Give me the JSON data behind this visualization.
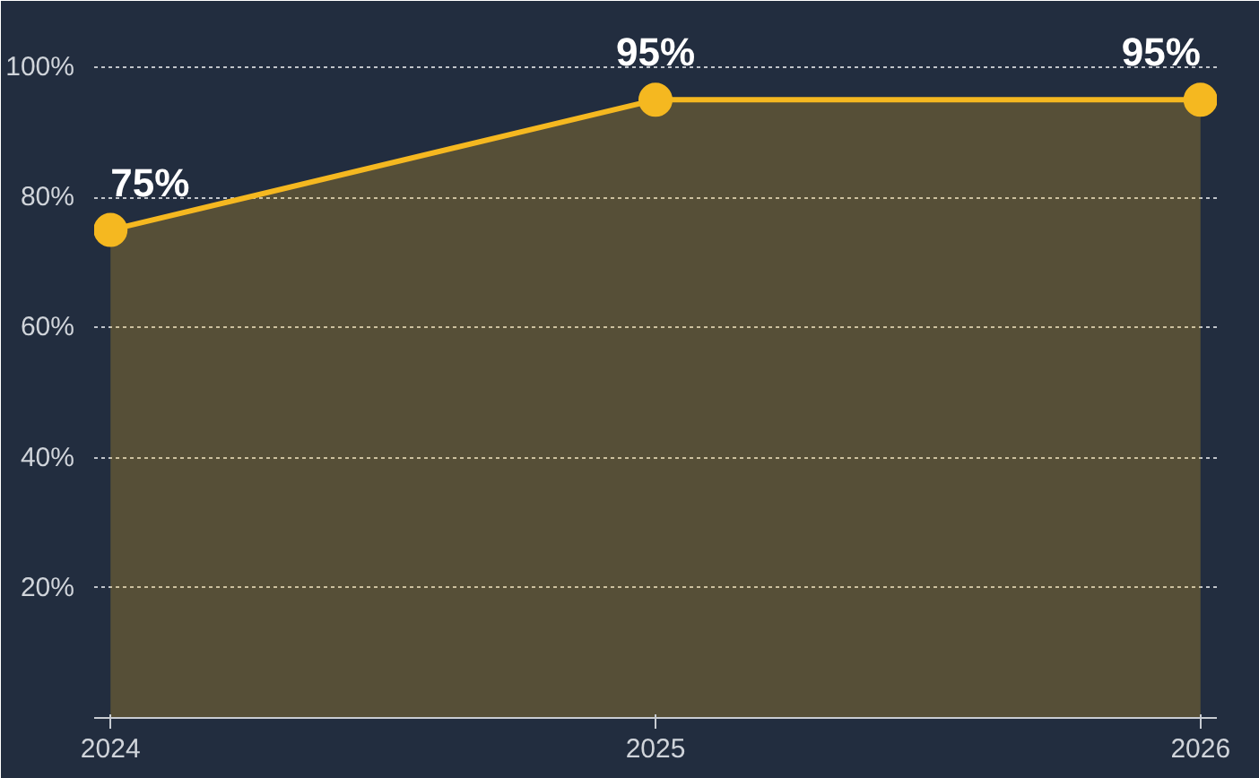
{
  "chart_data": {
    "type": "area",
    "x": [
      2024,
      2025,
      2026
    ],
    "series": [
      {
        "color": "#f5b820",
        "values": [
          75,
          95,
          95
        ],
        "value_labels": [
          "75%",
          "95%",
          "95%"
        ]
      }
    ],
    "xlim": [
      2023.97,
      2026.03
    ],
    "xticks": [
      2024,
      2025,
      2026
    ],
    "ylim": [
      0,
      108
    ],
    "yticks": [
      {
        "value": 20,
        "label": "20%"
      },
      {
        "value": 40,
        "label": "40%"
      },
      {
        "value": 60,
        "label": "60%"
      },
      {
        "value": 80,
        "label": "80%"
      },
      {
        "value": 100,
        "label": "100%"
      }
    ],
    "grid": "y",
    "marker": "circle",
    "line_style": "solid"
  }
}
